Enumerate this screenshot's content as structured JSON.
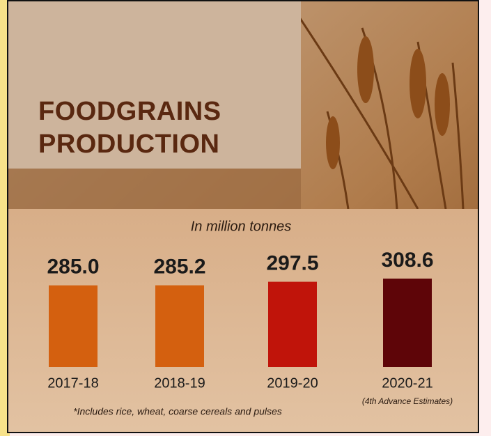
{
  "chart_data": {
    "type": "bar",
    "title": "FOODGRAINS PRODUCTION",
    "subtitle": "In million tonnes",
    "categories": [
      "2017-18",
      "2018-19",
      "2019-20",
      "2020-21"
    ],
    "values": [
      285.0,
      285.2,
      297.5,
      308.6
    ],
    "value_labels": [
      "285.0",
      "285.2",
      "297.5",
      "308.6"
    ],
    "colors": [
      "#d4600f",
      "#d4600f",
      "#c0140a",
      "#5e0508"
    ],
    "annotation": "(4th Advance Estimates)",
    "note": "*Includes rice, wheat, coarse cereals and pulses"
  }
}
